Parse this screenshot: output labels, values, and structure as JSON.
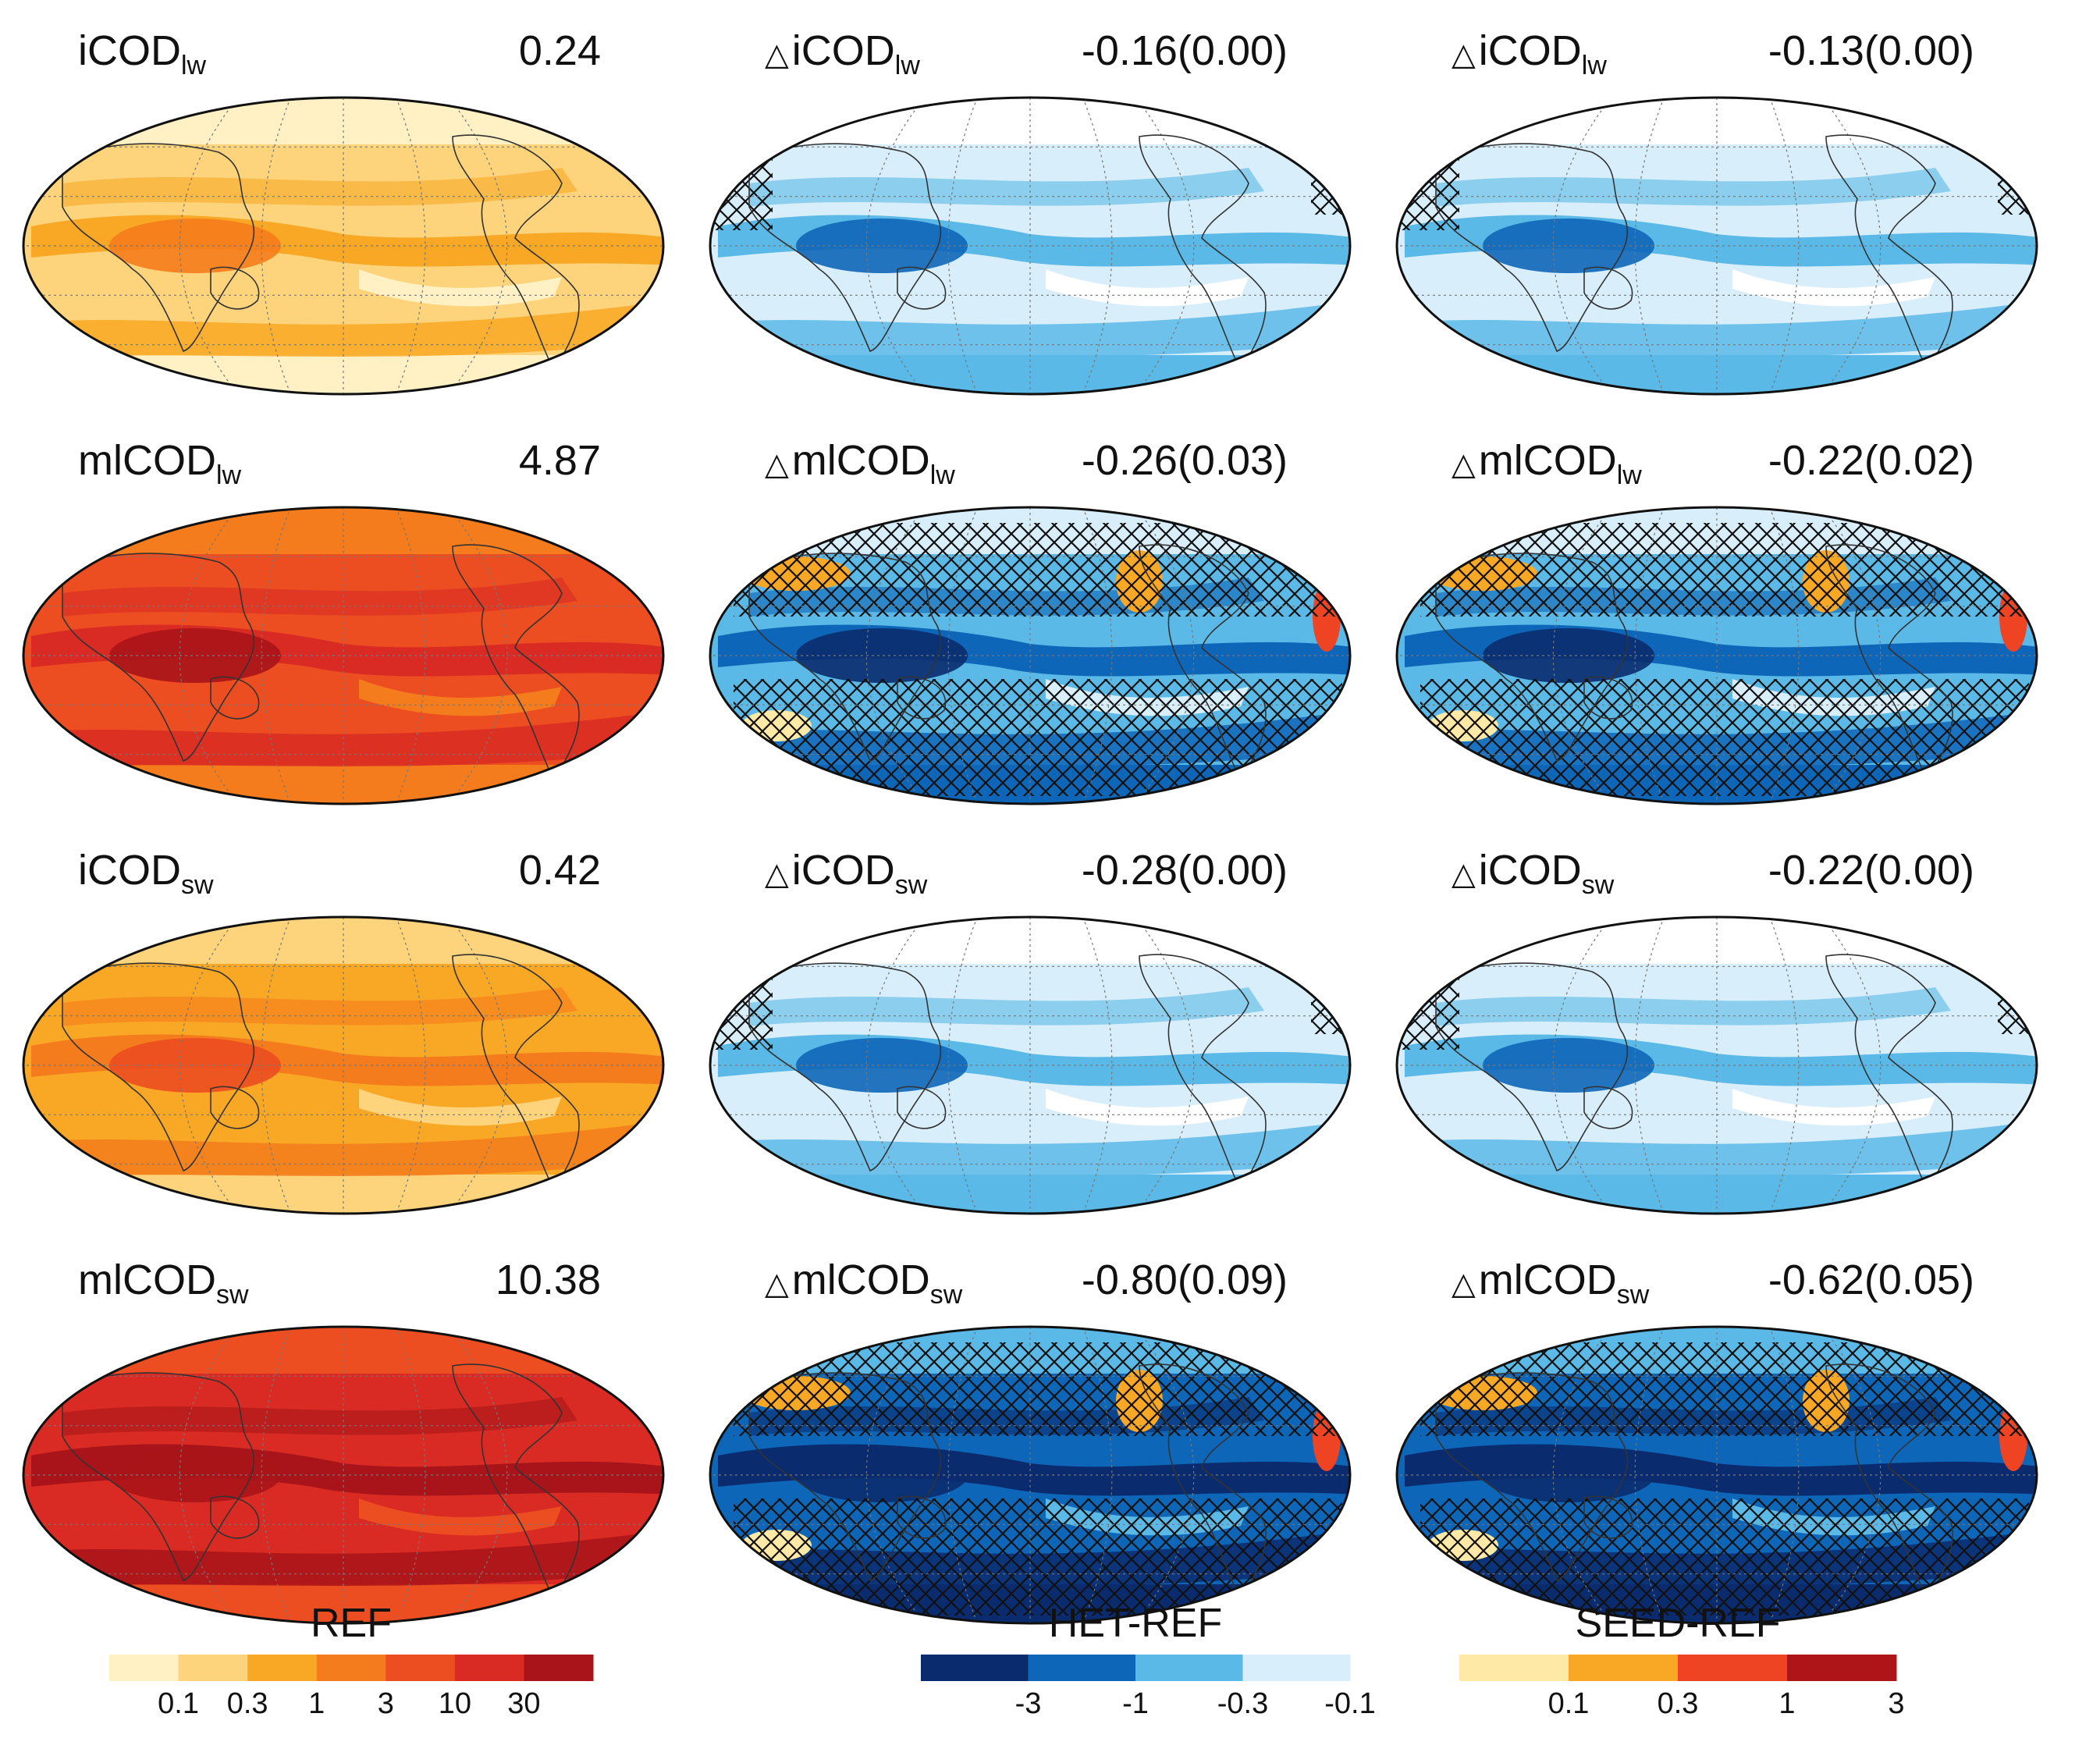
{
  "panels": [
    {
      "delta": "",
      "var": "iCOD",
      "sub": "lw",
      "value": "0.24",
      "scheme": "ref",
      "band": 1,
      "hatch": "none"
    },
    {
      "delta": "△",
      "var": "iCOD",
      "sub": "lw",
      "value": "-0.16(0.00)",
      "scheme": "neg",
      "band": 1,
      "hatch": "few"
    },
    {
      "delta": "△",
      "var": "iCOD",
      "sub": "lw",
      "value": "-0.13(0.00)",
      "scheme": "neg",
      "band": 1,
      "hatch": "few"
    },
    {
      "delta": "",
      "var": "mlCOD",
      "sub": "lw",
      "value": "4.87",
      "scheme": "ref",
      "band": 4,
      "hatch": "none"
    },
    {
      "delta": "△",
      "var": "mlCOD",
      "sub": "lw",
      "value": "-0.26(0.03)",
      "scheme": "neg",
      "band": 2,
      "hatch": "dense"
    },
    {
      "delta": "△",
      "var": "mlCOD",
      "sub": "lw",
      "value": "-0.22(0.02)",
      "scheme": "neg",
      "band": 2,
      "hatch": "dense"
    },
    {
      "delta": "",
      "var": "iCOD",
      "sub": "sw",
      "value": "0.42",
      "scheme": "ref",
      "band": 2,
      "hatch": "none"
    },
    {
      "delta": "△",
      "var": "iCOD",
      "sub": "sw",
      "value": "-0.28(0.00)",
      "scheme": "neg",
      "band": 1,
      "hatch": "few"
    },
    {
      "delta": "△",
      "var": "iCOD",
      "sub": "sw",
      "value": "-0.22(0.00)",
      "scheme": "neg",
      "band": 1,
      "hatch": "few"
    },
    {
      "delta": "",
      "var": "mlCOD",
      "sub": "sw",
      "value": "10.38",
      "scheme": "ref",
      "band": 5,
      "hatch": "none"
    },
    {
      "delta": "△",
      "var": "mlCOD",
      "sub": "sw",
      "value": "-0.80(0.09)",
      "scheme": "neg",
      "band": 3,
      "hatch": "dense"
    },
    {
      "delta": "△",
      "var": "mlCOD",
      "sub": "sw",
      "value": "-0.62(0.05)",
      "scheme": "neg",
      "band": 3,
      "hatch": "dense"
    }
  ],
  "colorbars": [
    {
      "title": "REF",
      "colors": [
        "#fff1c4",
        "#fdd47c",
        "#f9a825",
        "#f57c1c",
        "#ec4d21",
        "#d92b23",
        "#a81419"
      ],
      "ticks": [
        "0.1",
        "0.3",
        "1",
        "3",
        "10",
        "30"
      ]
    },
    {
      "title": "HET-REF",
      "colors": [
        "#0a2c6e",
        "#0e66b8",
        "#5ab9e6",
        "#d8eefa"
      ],
      "ticks": [
        "-3",
        "-1",
        "-0.3",
        "-0.1"
      ]
    },
    {
      "title": "SEED-REF",
      "colors": [
        "#ffe9a6",
        "#f9a825",
        "#ee4423",
        "#ad1519"
      ],
      "ticks": [
        "0.1",
        "0.3",
        "1",
        "3"
      ]
    }
  ],
  "palettes": {
    "ref": [
      "#fff1c4",
      "#fdd47c",
      "#f9a825",
      "#f57c1c",
      "#ec4d21",
      "#d92b23",
      "#a81419"
    ],
    "neg": [
      "#ffffff",
      "#d8eefa",
      "#5ab9e6",
      "#0e66b8",
      "#0a2c6e"
    ],
    "pos": [
      "#ffe9a6",
      "#f9a825",
      "#ee4423"
    ]
  }
}
